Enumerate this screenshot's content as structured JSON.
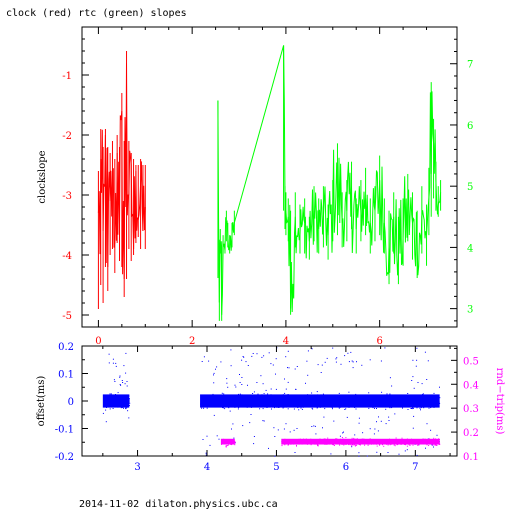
{
  "title": "clock (red) rtc (green) slopes",
  "footer": "2014-11-02  dilaton.physics.ubc.ca",
  "colors": {
    "clock": "#ff0000",
    "rtc": "#00ff00",
    "offset": "#0000ff",
    "rtt": "#ff00ff",
    "axis": "#000000"
  },
  "chart_data": [
    {
      "type": "line",
      "title": "clock (red) rtc (green) slopes",
      "ylabel": "clockslope",
      "y2label": "",
      "xlim": [
        -0.35,
        7.65
      ],
      "ylim": [
        -5.2,
        -0.2
      ],
      "y2lim": [
        2.7,
        7.6
      ],
      "xticks": [
        "0",
        "2",
        "4",
        "6"
      ],
      "yticks": [
        "-5",
        "-4",
        "-3",
        "-2",
        "-1"
      ],
      "y2ticks": [
        "3",
        "4",
        "5",
        "6",
        "7"
      ],
      "grid": false,
      "series": [
        {
          "name": "clock",
          "axis": "left",
          "x": [
            0.0,
            0.05,
            0.1,
            0.15,
            0.2,
            0.25,
            0.3,
            0.35,
            0.4,
            0.45,
            0.5,
            0.55,
            0.6,
            0.65,
            0.7,
            0.75,
            0.8,
            0.85,
            0.9,
            0.95,
            1.0
          ],
          "y": [
            -3.3,
            -2.4,
            -3.6,
            -2.0,
            -4.2,
            -3.1,
            -2.6,
            -3.8,
            -2.3,
            -3.5,
            -1.6,
            -4.4,
            -0.8,
            -3.0,
            -2.5,
            -3.9,
            -2.6,
            -3.4,
            -2.8,
            -3.6,
            -3.2
          ],
          "y_min": [
            -4.9,
            -4.5,
            -4.8,
            -4.2,
            -4.6,
            -4.0,
            -3.9,
            -4.3,
            -3.8,
            -4.1,
            -4.2,
            -4.7,
            -4.4,
            -3.9,
            -4.1,
            -4.0,
            -3.8,
            -3.7,
            -3.9,
            -3.6,
            -3.9
          ],
          "y_max": [
            -2.6,
            -1.9,
            -2.2,
            -1.9,
            -2.2,
            -2.3,
            -2.1,
            -2.4,
            -2.0,
            -2.2,
            -1.3,
            -2.1,
            -0.6,
            -2.1,
            -2.3,
            -2.4,
            -2.5,
            -2.5,
            -2.4,
            -2.5,
            -2.5
          ]
        },
        {
          "name": "rtc",
          "axis": "right",
          "x": [
            2.55,
            2.58,
            2.6,
            2.63,
            2.66,
            2.7,
            2.73,
            2.76,
            2.8,
            2.85,
            2.9,
            3.95,
            3.98,
            4.0,
            4.05,
            4.1,
            4.2,
            4.3,
            4.4,
            4.5,
            4.6,
            4.7,
            4.8,
            4.9,
            5.0,
            5.1,
            5.2,
            5.3,
            5.4,
            5.5,
            5.6,
            5.7,
            5.8,
            5.9,
            6.0,
            6.1,
            6.2,
            6.3,
            6.4,
            6.5,
            6.6,
            6.7,
            6.8,
            6.9,
            7.0,
            7.05,
            7.1,
            7.15,
            7.2,
            7.25,
            7.3
          ],
          "y": [
            6.4,
            3.1,
            4.1,
            2.9,
            4.0,
            3.95,
            4.4,
            4.2,
            4.0,
            4.2,
            4.4,
            7.3,
            4.8,
            4.6,
            4.5,
            3.0,
            4.5,
            4.2,
            4.4,
            4.1,
            4.6,
            4.3,
            4.5,
            4.2,
            4.6,
            4.9,
            4.4,
            4.6,
            5.0,
            4.3,
            4.6,
            4.8,
            4.4,
            4.6,
            5.1,
            4.4,
            4.0,
            4.5,
            3.8,
            4.2,
            4.7,
            4.4,
            4.0,
            4.5,
            4.2,
            4.8,
            5.2,
            5.7,
            5.1,
            4.7,
            4.9
          ],
          "y_min": [
            3.5,
            2.8,
            3.9,
            2.8,
            3.9,
            3.9,
            4.1,
            4.0,
            3.9,
            4.0,
            4.2,
            4.6,
            4.3,
            4.2,
            4.1,
            2.9,
            4.0,
            3.9,
            3.9,
            3.8,
            4.1,
            3.9,
            4.0,
            3.8,
            4.1,
            4.2,
            4.0,
            4.1,
            4.3,
            3.9,
            4.1,
            4.2,
            3.9,
            4.1,
            4.2,
            3.9,
            3.4,
            3.9,
            3.4,
            3.7,
            4.1,
            3.8,
            3.5,
            3.9,
            3.7,
            4.2,
            4.5,
            4.8,
            4.6,
            4.5,
            4.6
          ],
          "y_max": [
            6.4,
            4.0,
            4.3,
            4.1,
            4.2,
            4.1,
            4.6,
            4.4,
            4.2,
            4.4,
            4.6,
            7.3,
            5.0,
            4.9,
            4.8,
            4.6,
            4.9,
            4.7,
            4.8,
            4.5,
            5.0,
            4.8,
            5.0,
            4.7,
            5.1,
            5.7,
            4.9,
            5.1,
            5.4,
            4.8,
            5.1,
            5.3,
            4.8,
            5.0,
            5.5,
            4.8,
            4.6,
            4.9,
            4.5,
            4.8,
            5.2,
            4.9,
            4.6,
            5.0,
            4.7,
            5.3,
            6.7,
            6.1,
            5.4,
            5.0,
            5.1
          ]
        }
      ]
    },
    {
      "type": "scatter",
      "ylabel": "offset(ms)",
      "y2label": "rnd−trip(ms)",
      "xlim": [
        2.2,
        7.6
      ],
      "ylim": [
        -0.2,
        0.2
      ],
      "y2lim": [
        0.1,
        0.56
      ],
      "xticks": [
        "3",
        "4",
        "5",
        "6",
        "7"
      ],
      "yticks": [
        "-0.2",
        "-0.1",
        "0",
        "0.1",
        "0.2"
      ],
      "y2ticks": [
        "0.1",
        "0.2",
        "0.3",
        "0.4",
        "0.5"
      ],
      "grid": false,
      "series": [
        {
          "name": "offset",
          "axis": "left",
          "segments": [
            {
              "x_range": [
                2.5,
                2.88
              ],
              "center": 0.0,
              "spread": 0.03,
              "outlier_range": [
                -0.08,
                0.18
              ]
            },
            {
              "x_range": [
                3.9,
                7.35
              ],
              "center": 0.0,
              "spread": 0.03,
              "outlier_range": [
                -0.2,
                0.2
              ]
            }
          ]
        },
        {
          "name": "rnd-trip",
          "axis": "right",
          "segments": [
            {
              "x_range": [
                4.2,
                4.4
              ],
              "center": 0.16,
              "spread": 0.012
            },
            {
              "x_range": [
                5.07,
                7.35
              ],
              "center": 0.16,
              "spread": 0.012
            }
          ]
        }
      ]
    }
  ]
}
